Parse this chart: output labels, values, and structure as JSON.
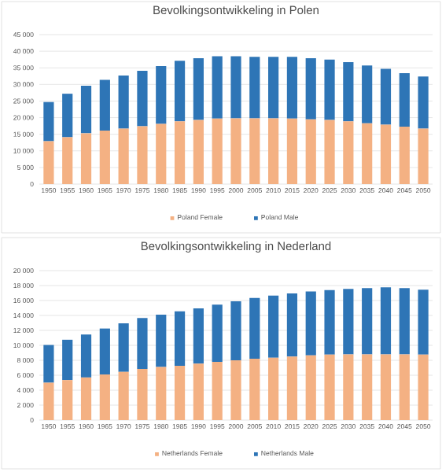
{
  "chart_data": [
    {
      "type": "bar",
      "title": "Bevolkingsontwikkeling in Polen",
      "stacked": true,
      "grid": "y",
      "legend": "bottom",
      "categories": [
        "1950",
        "1955",
        "1960",
        "1965",
        "1970",
        "1975",
        "1980",
        "1985",
        "1990",
        "1995",
        "2000",
        "2005",
        "2010",
        "2015",
        "2020",
        "2025",
        "2030",
        "2035",
        "2040",
        "2045",
        "2050"
      ],
      "ylim": [
        0,
        45000
      ],
      "yticks": [
        0,
        {
          "value": 5000,
          "label": "5 000"
        },
        {
          "value": 10000,
          "label": "10 000"
        },
        {
          "value": 15000,
          "label": "15 000"
        },
        {
          "value": 20000,
          "label": "20 000"
        },
        {
          "value": 25000,
          "label": "25 000"
        },
        {
          "value": 30000,
          "label": "30 000"
        },
        {
          "value": 35000,
          "label": "35 000"
        },
        {
          "value": 40000,
          "label": "40 000"
        },
        {
          "value": 45000,
          "label": "45 000"
        }
      ],
      "series": [
        {
          "name": "Poland Female",
          "color": "#f4b183",
          "values": [
            12900,
            14100,
            15300,
            16100,
            16700,
            17400,
            18100,
            18900,
            19300,
            19700,
            19800,
            19800,
            19800,
            19700,
            19500,
            19300,
            18900,
            18300,
            17900,
            17300,
            16700
          ]
        },
        {
          "name": "Poland Male",
          "color": "#2e75b6",
          "values": [
            11800,
            13100,
            14300,
            15300,
            16000,
            16700,
            17400,
            18200,
            18600,
            18800,
            18700,
            18500,
            18500,
            18600,
            18400,
            18200,
            17800,
            17400,
            16800,
            16100,
            15700
          ]
        }
      ]
    },
    {
      "type": "bar",
      "title": "Bevolkingsontwikkeling in Nederland",
      "stacked": true,
      "grid": "y",
      "legend": "bottom",
      "categories": [
        "1950",
        "1955",
        "1960",
        "1965",
        "1970",
        "1975",
        "1980",
        "1985",
        "1990",
        "1995",
        "2000",
        "2005",
        "2010",
        "2015",
        "2020",
        "2025",
        "2030",
        "2035",
        "2040",
        "2045",
        "2050"
      ],
      "ylim": [
        0,
        20000
      ],
      "yticks": [
        0,
        {
          "value": 2000,
          "label": "2 000"
        },
        {
          "value": 4000,
          "label": "4 000"
        },
        {
          "value": 6000,
          "label": "6 000"
        },
        {
          "value": 8000,
          "label": "8 000"
        },
        {
          "value": 10000,
          "label": "10 000"
        },
        {
          "value": 12000,
          "label": "12 000"
        },
        {
          "value": 14000,
          "label": "14 000"
        },
        {
          "value": 16000,
          "label": "16 000"
        },
        {
          "value": 18000,
          "label": "18 000"
        },
        {
          "value": 20000,
          "label": "20 000"
        }
      ],
      "series": [
        {
          "name": "Netherlands Female",
          "color": "#f4b183",
          "values": [
            5000,
            5350,
            5700,
            6100,
            6450,
            6850,
            7100,
            7250,
            7550,
            7800,
            8000,
            8200,
            8350,
            8500,
            8650,
            8750,
            8800,
            8800,
            8800,
            8800,
            8750
          ]
        },
        {
          "name": "Netherlands Male",
          "color": "#2e75b6",
          "values": [
            5050,
            5400,
            5750,
            6150,
            6500,
            6800,
            7000,
            7300,
            7400,
            7650,
            7900,
            8150,
            8300,
            8450,
            8550,
            8650,
            8750,
            8850,
            8950,
            8850,
            8700
          ]
        }
      ]
    }
  ]
}
